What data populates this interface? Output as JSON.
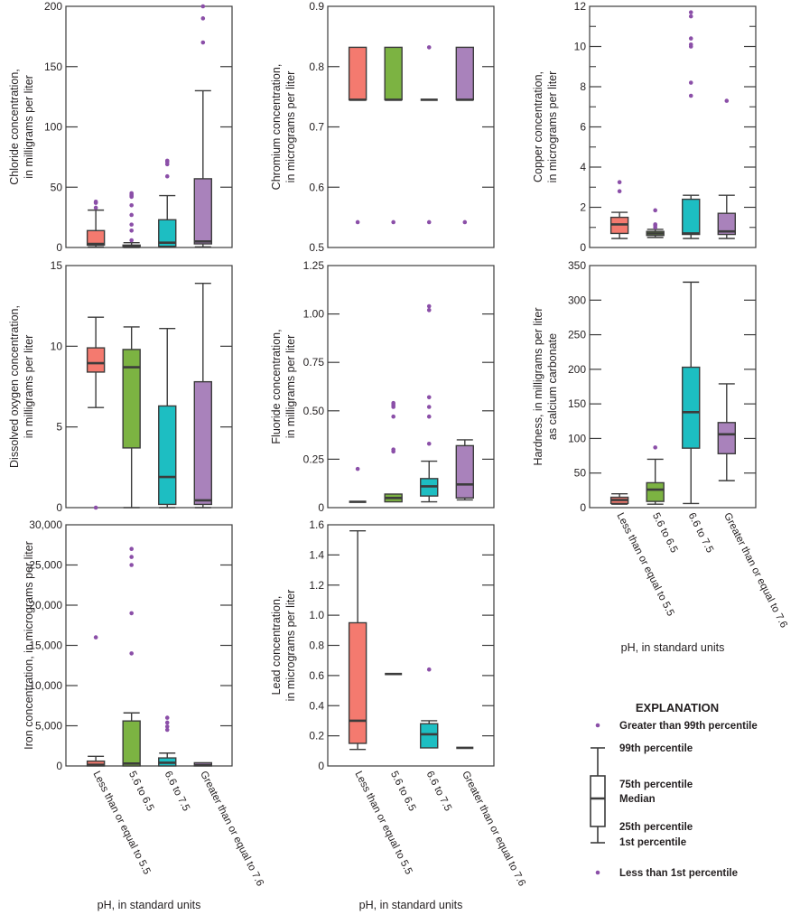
{
  "colors": {
    "less_than_5_5": "#f47a6f",
    "5_6_to_6_5": "#7cb342",
    "6_6_to_7_5": "#1dbec2",
    "greater_7_6": "#a982bb",
    "outlier": "#8b4fa8",
    "box_edge": "#3c3c3c"
  },
  "chart_data": [
    {
      "type": "boxplot",
      "id": "chloride",
      "ylabel": [
        "Chloride concentration,",
        "in milligrams per liter"
      ],
      "ylim": [
        0,
        200
      ],
      "yticks": [
        0,
        50,
        100,
        150,
        200
      ],
      "ytick_labels": [
        "0",
        "50",
        "100",
        "150",
        "200"
      ],
      "minor_ticks": [],
      "boxes": [
        {
          "category": "Less than or equal to 5.5",
          "p1": 0.5,
          "q1": 2,
          "median": 3,
          "q3": 14,
          "p99": 31,
          "outliers": [
            33,
            37,
            38
          ]
        },
        {
          "category": "5.6 to 6.5",
          "p1": 0,
          "q1": 0.3,
          "median": 1,
          "q3": 2,
          "p99": 4,
          "outliers": [
            6,
            14,
            19,
            27,
            35,
            42,
            43,
            44,
            45
          ]
        },
        {
          "category": "6.6 to 7.5",
          "p1": 0.5,
          "q1": 1,
          "median": 4,
          "q3": 23,
          "p99": 43,
          "outliers": [
            59,
            69,
            71,
            72
          ]
        },
        {
          "category": "Greater than or equal to 7.6",
          "p1": 0.5,
          "q1": 3,
          "median": 5,
          "q3": 57,
          "p99": 130,
          "outliers": [
            170,
            190,
            200
          ]
        }
      ]
    },
    {
      "type": "boxplot",
      "id": "chromium",
      "ylabel": [
        "Chromium concentration,",
        "in micrograms per liter"
      ],
      "ylim": [
        0.5,
        0.9
      ],
      "yticks": [
        0.5,
        0.6,
        0.7,
        0.8,
        0.9
      ],
      "ytick_labels": [
        "0.5",
        "0.6",
        "0.7",
        "0.8",
        "0.9"
      ],
      "minor_ticks": [],
      "boxes": [
        {
          "category": "Less than or equal to 5.5",
          "p1": 0.745,
          "q1": 0.745,
          "median": 0.745,
          "q3": 0.832,
          "p99": 0.832,
          "outliers": [
            0.542
          ]
        },
        {
          "category": "5.6 to 6.5",
          "p1": 0.745,
          "q1": 0.745,
          "median": 0.745,
          "q3": 0.832,
          "p99": 0.832,
          "outliers": [
            0.542
          ]
        },
        {
          "category": "6.6 to 7.5",
          "p1": 0.745,
          "q1": 0.745,
          "median": 0.745,
          "q3": 0.745,
          "p99": 0.745,
          "outliers": [
            0.542,
            0.832
          ]
        },
        {
          "category": "Greater than or equal to 7.6",
          "p1": 0.745,
          "q1": 0.745,
          "median": 0.745,
          "q3": 0.832,
          "p99": 0.832,
          "outliers": [
            0.542
          ]
        }
      ]
    },
    {
      "type": "boxplot",
      "id": "copper",
      "ylabel": [
        "Copper concentration,",
        "in micrograms per liter"
      ],
      "ylim": [
        0,
        12
      ],
      "yticks": [
        0,
        2,
        4,
        6,
        8,
        10,
        12
      ],
      "ytick_labels": [
        "0",
        "2",
        "4",
        "6",
        "8",
        "10",
        "12"
      ],
      "minor_ticks": [
        1,
        3,
        5,
        7,
        9,
        11
      ],
      "boxes": [
        {
          "category": "Less than or equal to 5.5",
          "p1": 0.45,
          "q1": 0.7,
          "median": 1.15,
          "q3": 1.5,
          "p99": 1.75,
          "outliers": [
            2.8,
            3.25
          ]
        },
        {
          "category": "5.6 to 6.5",
          "p1": 0.5,
          "q1": 0.6,
          "median": 0.7,
          "q3": 0.8,
          "p99": 0.9,
          "outliers": [
            1.0,
            1.1,
            1.15,
            1.85
          ]
        },
        {
          "category": "6.6 to 7.5",
          "p1": 0.45,
          "q1": 0.65,
          "median": 0.7,
          "q3": 2.4,
          "p99": 2.6,
          "outliers": [
            7.55,
            8.2,
            10.0,
            10.1,
            10.4,
            11.5,
            11.7
          ]
        },
        {
          "category": "Greater than or equal to 7.6",
          "p1": 0.45,
          "q1": 0.65,
          "median": 0.8,
          "q3": 1.7,
          "p99": 2.6,
          "outliers": [
            7.3
          ]
        }
      ]
    },
    {
      "type": "boxplot",
      "id": "dissolved-oxygen",
      "ylabel": [
        "Dissolved oxygen concentration,",
        "in milligrams per liter"
      ],
      "ylim": [
        0,
        15
      ],
      "yticks": [
        0,
        5,
        10,
        15
      ],
      "ytick_labels": [
        "0",
        "5",
        "10",
        "15"
      ],
      "minor_ticks": [],
      "boxes": [
        {
          "category": "Less than or equal to 5.5",
          "p1": 6.2,
          "q1": 8.4,
          "median": 8.95,
          "q3": 9.9,
          "p99": 11.8,
          "outliers": [
            0
          ]
        },
        {
          "category": "5.6 to 6.5",
          "p1": 0,
          "q1": 3.7,
          "median": 8.7,
          "q3": 9.8,
          "p99": 11.2,
          "outliers": []
        },
        {
          "category": "6.6 to 7.5",
          "p1": 0,
          "q1": 0.2,
          "median": 1.9,
          "q3": 6.3,
          "p99": 11.1,
          "outliers": []
        },
        {
          "category": "Greater than or equal to 7.6",
          "p1": 0,
          "q1": 0.2,
          "median": 0.45,
          "q3": 7.8,
          "p99": 13.9,
          "outliers": []
        }
      ]
    },
    {
      "type": "boxplot",
      "id": "fluoride",
      "ylabel": [
        "Fluoride concentration,",
        "in milligrams per liter"
      ],
      "ylim": [
        0,
        1.25
      ],
      "yticks": [
        0,
        0.25,
        0.5,
        0.75,
        1.0,
        1.25
      ],
      "ytick_labels": [
        "0",
        "0.25",
        "0.50",
        "0.75",
        "1.00",
        "1.25"
      ],
      "minor_ticks": [],
      "boxes": [
        {
          "category": "Less than or equal to 5.5",
          "p1": 0.03,
          "q1": 0.03,
          "median": 0.03,
          "q3": 0.03,
          "p99": 0.03,
          "outliers": [
            0.2
          ]
        },
        {
          "category": "5.6 to 6.5",
          "p1": 0.03,
          "q1": 0.03,
          "median": 0.05,
          "q3": 0.07,
          "p99": 0.07,
          "outliers": [
            0.29,
            0.3,
            0.47,
            0.52,
            0.53,
            0.54
          ]
        },
        {
          "category": "6.6 to 7.5",
          "p1": 0.03,
          "q1": 0.06,
          "median": 0.11,
          "q3": 0.15,
          "p99": 0.24,
          "outliers": [
            0.33,
            0.47,
            0.52,
            0.57,
            1.02,
            1.04
          ]
        },
        {
          "category": "Greater than or equal to 7.6",
          "p1": 0.04,
          "q1": 0.05,
          "median": 0.12,
          "q3": 0.32,
          "p99": 0.35,
          "outliers": []
        }
      ]
    },
    {
      "type": "boxplot",
      "id": "hardness",
      "ylabel": [
        "Hardness, in milligrams per liter",
        "as calcium carbonate"
      ],
      "ylim": [
        0,
        350
      ],
      "yticks": [
        0,
        50,
        100,
        150,
        200,
        250,
        300,
        350
      ],
      "ytick_labels": [
        "0",
        "50",
        "100",
        "150",
        "200",
        "250",
        "300",
        "350"
      ],
      "minor_ticks": [],
      "boxes": [
        {
          "category": "Less than or equal to 5.5",
          "p1": 5,
          "q1": 6,
          "median": 11,
          "q3": 15,
          "p99": 20,
          "outliers": []
        },
        {
          "category": "5.6 to 6.5",
          "p1": 5,
          "q1": 9,
          "median": 26,
          "q3": 36,
          "p99": 70,
          "outliers": [
            87
          ]
        },
        {
          "category": "6.6 to 7.5",
          "p1": 6,
          "q1": 86,
          "median": 138,
          "q3": 203,
          "p99": 326,
          "outliers": []
        },
        {
          "category": "Greater than or equal to 7.6",
          "p1": 39,
          "q1": 78,
          "median": 106,
          "q3": 123,
          "p99": 179,
          "outliers": []
        }
      ]
    },
    {
      "type": "boxplot",
      "id": "iron",
      "ylabel": [
        "Iron concentration, in micrograms per liter"
      ],
      "ylim": [
        0,
        30000
      ],
      "yticks": [
        0,
        5000,
        10000,
        15000,
        20000,
        25000,
        30000
      ],
      "ytick_labels": [
        "0",
        "5,000",
        "10,000",
        "15,000",
        "20,000",
        "25,000",
        "30,000"
      ],
      "minor_ticks": [],
      "boxes": [
        {
          "category": "Less than or equal to 5.5",
          "p1": 0,
          "q1": 0,
          "median": 150,
          "q3": 600,
          "p99": 1200,
          "outliers": [
            16000
          ]
        },
        {
          "category": "5.6 to 6.5",
          "p1": 0,
          "q1": 0,
          "median": 300,
          "q3": 5600,
          "p99": 6600,
          "outliers": [
            14000,
            19000,
            25000,
            26000,
            27000
          ]
        },
        {
          "category": "6.6 to 7.5",
          "p1": 0,
          "q1": 0,
          "median": 400,
          "q3": 1000,
          "p99": 1600,
          "outliers": [
            4500,
            4900,
            5400,
            6000
          ]
        },
        {
          "category": "Greater than or equal to 7.6",
          "p1": 0,
          "q1": 0,
          "median": 100,
          "q3": 400,
          "p99": 400,
          "outliers": []
        }
      ]
    },
    {
      "type": "boxplot",
      "id": "lead",
      "ylabel": [
        "Lead concentration,",
        "in micrograms per liter"
      ],
      "ylim": [
        0,
        1.6
      ],
      "yticks": [
        0,
        0.2,
        0.4,
        0.6,
        0.8,
        1.0,
        1.2,
        1.4,
        1.6
      ],
      "ytick_labels": [
        "0",
        "0.2",
        "0.4",
        "0.6",
        "0.8",
        "1.0",
        "1.2",
        "1.4",
        "1.6"
      ],
      "minor_ticks": [],
      "boxes": [
        {
          "category": "Less than or equal to 5.5",
          "p1": 0.11,
          "q1": 0.15,
          "median": 0.3,
          "q3": 0.95,
          "p99": 1.56,
          "outliers": []
        },
        {
          "category": "5.6 to 6.5",
          "p1": 0.61,
          "q1": 0.61,
          "median": 0.61,
          "q3": 0.61,
          "p99": 0.61,
          "outliers": []
        },
        {
          "category": "6.6 to 7.5",
          "p1": 0.12,
          "q1": 0.12,
          "median": 0.21,
          "q3": 0.28,
          "p99": 0.3,
          "outliers": [
            0.64
          ]
        },
        {
          "category": "Greater than or equal to 7.6",
          "p1": 0.12,
          "q1": 0.12,
          "median": 0.12,
          "q3": 0.12,
          "p99": 0.12,
          "outliers": []
        }
      ]
    }
  ],
  "categories": [
    "Less than or equal to 5.5",
    "5.6 to 6.5",
    "6.6 to 7.5",
    "Greater than or equal to 7.6"
  ],
  "xlabel": "pH, in standard units",
  "legend": {
    "title": "EXPLANATION",
    "greater_99": "Greater than 99th percentile",
    "p99": "99th percentile",
    "p75": "75th percentile",
    "median": "Median",
    "p25": "25th percentile",
    "p1": "1st percentile",
    "less_1": "Less than 1st percentile"
  }
}
